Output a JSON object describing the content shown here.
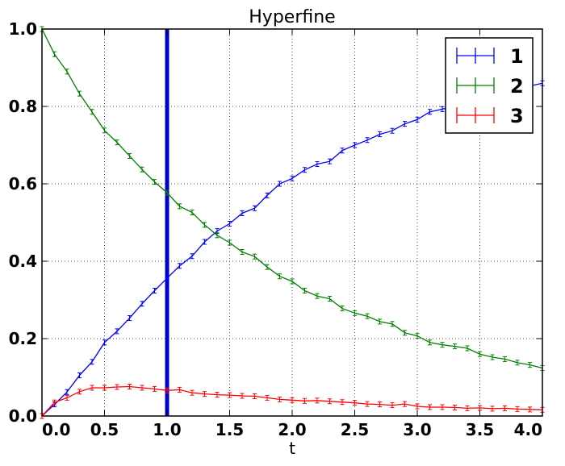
{
  "chart_data": {
    "type": "line",
    "title": "Hyperfine",
    "xlabel": "t",
    "ylabel": "",
    "xlim": [
      0.0,
      4.0
    ],
    "ylim": [
      0.0,
      1.0
    ],
    "xticks": [
      "0.0",
      "0.5",
      "1.0",
      "1.5",
      "2.0",
      "2.5",
      "3.0",
      "3.5",
      "4.0"
    ],
    "yticks": [
      "0.0",
      "0.2",
      "0.4",
      "0.6",
      "0.8",
      "1.0"
    ],
    "grid": true,
    "legend_position": "top-right",
    "vline": {
      "x": 1.0,
      "color": "#0000cc"
    },
    "x": [
      0.0,
      0.1,
      0.2,
      0.3,
      0.4,
      0.5,
      0.6,
      0.7,
      0.8,
      0.9,
      1.0,
      1.1,
      1.2,
      1.3,
      1.4,
      1.5,
      1.6,
      1.7,
      1.8,
      1.9,
      2.0,
      2.1,
      2.2,
      2.3,
      2.4,
      2.5,
      2.6,
      2.7,
      2.8,
      2.9,
      3.0,
      3.1,
      3.2,
      3.3,
      3.4,
      3.5,
      3.6,
      3.7,
      3.8,
      3.9,
      4.0
    ],
    "series": [
      {
        "name": "1",
        "color": "#0000ff",
        "values": [
          0.0,
          0.03,
          0.062,
          0.105,
          0.14,
          0.19,
          0.219,
          0.253,
          0.29,
          0.324,
          0.356,
          0.388,
          0.413,
          0.45,
          0.478,
          0.497,
          0.524,
          0.537,
          0.57,
          0.6,
          0.614,
          0.636,
          0.651,
          0.658,
          0.686,
          0.7,
          0.713,
          0.728,
          0.737,
          0.755,
          0.766,
          0.786,
          0.793,
          0.8,
          0.808,
          0.818,
          0.82,
          0.826,
          0.84,
          0.853,
          0.86
        ]
      },
      {
        "name": "2",
        "color": "#008000",
        "values": [
          1.0,
          0.935,
          0.89,
          0.833,
          0.786,
          0.738,
          0.707,
          0.672,
          0.637,
          0.605,
          0.577,
          0.542,
          0.526,
          0.494,
          0.467,
          0.448,
          0.424,
          0.412,
          0.385,
          0.361,
          0.348,
          0.324,
          0.31,
          0.303,
          0.278,
          0.266,
          0.258,
          0.244,
          0.238,
          0.215,
          0.207,
          0.19,
          0.184,
          0.18,
          0.175,
          0.16,
          0.152,
          0.147,
          0.138,
          0.132,
          0.124
        ]
      },
      {
        "name": "3",
        "color": "#ff0000",
        "values": [
          0.0,
          0.035,
          0.047,
          0.063,
          0.073,
          0.073,
          0.075,
          0.076,
          0.073,
          0.07,
          0.066,
          0.068,
          0.06,
          0.057,
          0.055,
          0.054,
          0.052,
          0.051,
          0.047,
          0.043,
          0.041,
          0.039,
          0.04,
          0.038,
          0.036,
          0.034,
          0.031,
          0.03,
          0.028,
          0.031,
          0.025,
          0.023,
          0.023,
          0.022,
          0.02,
          0.021,
          0.019,
          0.02,
          0.018,
          0.017,
          0.016
        ]
      }
    ]
  }
}
